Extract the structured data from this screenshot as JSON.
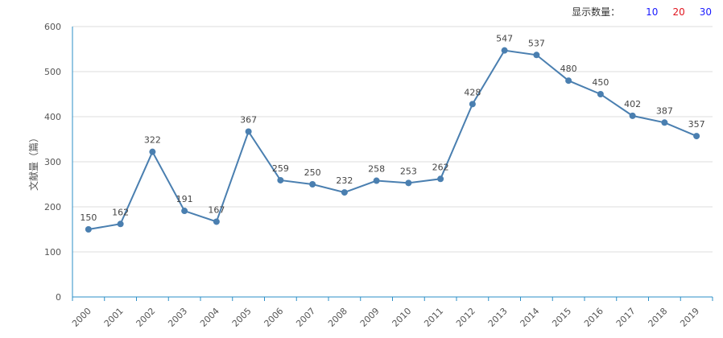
{
  "display_count": {
    "label": "显示数量：",
    "options": [
      {
        "text": "10",
        "color": "#1a1aff"
      },
      {
        "text": "20",
        "color": "#e0141e"
      },
      {
        "text": "30",
        "color": "#1a1aff"
      }
    ]
  },
  "chart_data": {
    "type": "line",
    "title": "",
    "xlabel": "",
    "ylabel": "文献量（篇）",
    "x": [
      "2000",
      "2001",
      "2002",
      "2003",
      "2004",
      "2005",
      "2006",
      "2007",
      "2008",
      "2009",
      "2010",
      "2011",
      "2012",
      "2013",
      "2014",
      "2015",
      "2016",
      "2017",
      "2018",
      "2019"
    ],
    "series": [
      {
        "values": [
          150,
          162,
          322,
          191,
          167,
          367,
          259,
          250,
          232,
          258,
          253,
          262,
          428,
          547,
          537,
          480,
          450,
          402,
          387,
          357
        ]
      }
    ],
    "ylim": [
      0,
      600
    ],
    "yticks": [
      0,
      100,
      200,
      300,
      400,
      500,
      600
    ],
    "grid": true,
    "line_color": "#4a7fb0",
    "axis_color": "#2b8fc7"
  }
}
